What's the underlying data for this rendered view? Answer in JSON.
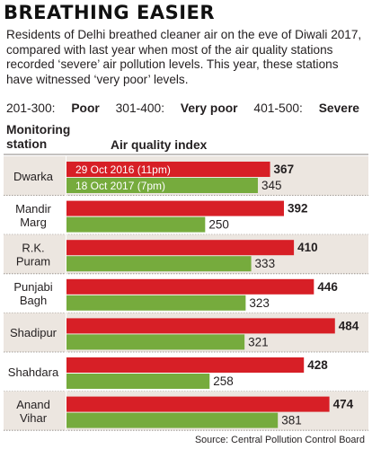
{
  "header": {
    "title": "BREATHING EASIER",
    "subtitle": "Residents of Delhi breathed cleaner air on the eve of Diwali 2017, compared with last year when most of the air quality stations recorded ‘severe’ air pollution levels. This year, these stations have witnessed ‘very poor’ levels."
  },
  "legend": [
    {
      "range": "201-300:",
      "label": "Poor"
    },
    {
      "range": "301-400:",
      "label": "Very poor"
    },
    {
      "range": "401-500:",
      "label": "Severe"
    }
  ],
  "columns": {
    "station_label": "Monitoring station",
    "aqi_label": "Air quality index"
  },
  "source": "Source: Central Pollution Control Board",
  "colors": {
    "red": "#d71f26",
    "green": "#76ab3d",
    "band": "#ece6e0",
    "separator": "#8b8580"
  },
  "chart_data": {
    "type": "bar",
    "orientation": "horizontal",
    "xlabel": "Air quality index",
    "ylabel": "Monitoring station",
    "categories": [
      "Dwarka",
      "Mandir Marg",
      "R.K. Puram",
      "Punjabi Bagh",
      "Shadipur",
      "Shahdara",
      "Anand Vihar"
    ],
    "series": [
      {
        "name": "29 Oct 2016 (11pm)",
        "color": "#d71f26",
        "values": [
          367,
          392,
          410,
          446,
          484,
          428,
          474
        ]
      },
      {
        "name": "18 Oct 2017 (7pm)",
        "color": "#76ab3d",
        "values": [
          345,
          250,
          333,
          323,
          321,
          258,
          381
        ]
      }
    ]
  }
}
